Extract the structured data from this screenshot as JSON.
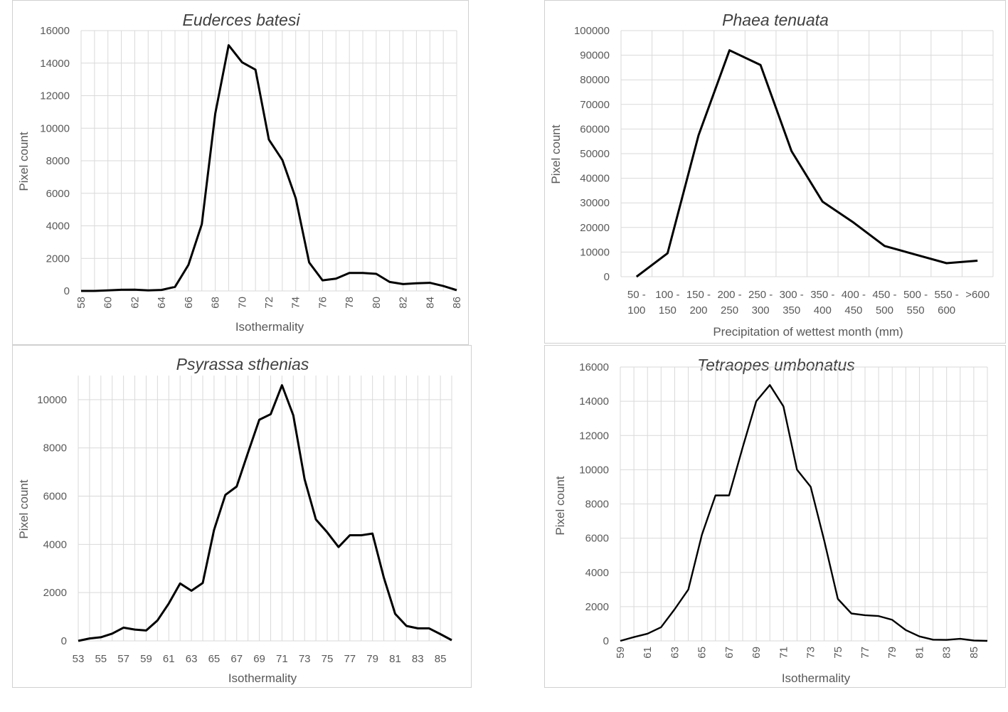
{
  "chart_data": [
    {
      "type": "line",
      "title": "Euderces batesi",
      "xlabel": "Isothermality",
      "ylabel": "Pixel count",
      "ylim": [
        0,
        16000
      ],
      "yticks": [
        0,
        2000,
        4000,
        6000,
        8000,
        10000,
        12000,
        14000,
        16000
      ],
      "x": [
        58,
        59,
        60,
        61,
        62,
        63,
        64,
        65,
        66,
        67,
        68,
        69,
        70,
        71,
        72,
        73,
        74,
        75,
        76,
        77,
        78,
        79,
        80,
        81,
        82,
        83,
        84,
        85,
        86
      ],
      "xtick_labels": [
        "58",
        "60",
        "62",
        "64",
        "66",
        "68",
        "70",
        "72",
        "74",
        "76",
        "78",
        "80",
        "82",
        "84",
        "86"
      ],
      "grid": true,
      "legend": "none",
      "series": [
        {
          "values": [
            0,
            0,
            30,
            70,
            80,
            30,
            60,
            250,
            1600,
            4100,
            10900,
            15100,
            14050,
            13600,
            9300,
            8050,
            5700,
            1750,
            650,
            750,
            1100,
            1100,
            1050,
            550,
            420,
            470,
            500,
            300,
            50
          ]
        }
      ]
    },
    {
      "type": "line",
      "title": "Phaea tenuata",
      "xlabel": "Precipitation of wettest month (mm)",
      "ylabel": "Pixel count",
      "ylim": [
        0,
        100000
      ],
      "yticks": [
        0,
        10000,
        20000,
        30000,
        40000,
        50000,
        60000,
        70000,
        80000,
        90000,
        100000
      ],
      "categories": [
        "50 -\n100",
        "100 -\n150",
        "150 -\n200",
        "200 -\n250",
        "250 -\n300",
        "300 -\n350",
        "350 -\n400",
        "400 -\n450",
        "450 -\n500",
        "500 -\n550",
        "550 -\n600",
        ">600"
      ],
      "grid": true,
      "legend": "none",
      "series": [
        {
          "values": [
            0,
            9500,
            57500,
            92000,
            86000,
            51000,
            30500,
            22000,
            12500,
            9000,
            5500,
            6500
          ]
        }
      ]
    },
    {
      "type": "line",
      "title": "Psyrassa sthenias",
      "xlabel": "Isothermality",
      "ylabel": "Pixel count",
      "ylim": [
        0,
        11000
      ],
      "yticks": [
        0,
        2000,
        4000,
        6000,
        8000,
        10000
      ],
      "x": [
        53,
        54,
        55,
        56,
        57,
        58,
        59,
        60,
        61,
        62,
        63,
        64,
        65,
        66,
        67,
        68,
        69,
        70,
        71,
        72,
        73,
        74,
        75,
        76,
        77,
        78,
        79,
        80,
        81,
        82,
        83,
        84,
        85,
        86
      ],
      "xtick_labels": [
        "53",
        "55",
        "57",
        "59",
        "61",
        "63",
        "65",
        "67",
        "69",
        "71",
        "73",
        "75",
        "77",
        "79",
        "81",
        "83",
        "85"
      ],
      "grid": true,
      "legend": "none",
      "series": [
        {
          "values": [
            0,
            100,
            150,
            300,
            550,
            470,
            430,
            850,
            1550,
            2380,
            2080,
            2400,
            4600,
            6050,
            6400,
            7800,
            9170,
            9400,
            10600,
            9350,
            6700,
            5030,
            4500,
            3890,
            4380,
            4380,
            4450,
            2630,
            1120,
            620,
            520,
            520,
            280,
            30
          ]
        }
      ]
    },
    {
      "type": "line",
      "title": "Tetraopes umbonatus",
      "xlabel": "Isothermality",
      "ylabel": "Pixel count",
      "ylim": [
        0,
        16000
      ],
      "yticks": [
        0,
        2000,
        4000,
        6000,
        8000,
        10000,
        12000,
        14000,
        16000
      ],
      "x": [
        59,
        60,
        61,
        62,
        63,
        64,
        65,
        66,
        67,
        68,
        69,
        70,
        71,
        72,
        73,
        74,
        75,
        76,
        77,
        78,
        79,
        80,
        81,
        82,
        83,
        84,
        85,
        86
      ],
      "xtick_labels": [
        "59",
        "61",
        "63",
        "65",
        "67",
        "69",
        "71",
        "73",
        "75",
        "77",
        "79",
        "81",
        "83",
        "85"
      ],
      "grid": true,
      "legend": "none",
      "series": [
        {
          "values": [
            0,
            220,
            420,
            800,
            1850,
            3000,
            6200,
            8500,
            8500,
            11300,
            14000,
            14950,
            13700,
            10000,
            9000,
            5850,
            2450,
            1600,
            1500,
            1450,
            1230,
            630,
            260,
            70,
            60,
            120,
            20,
            0
          ]
        }
      ]
    }
  ]
}
